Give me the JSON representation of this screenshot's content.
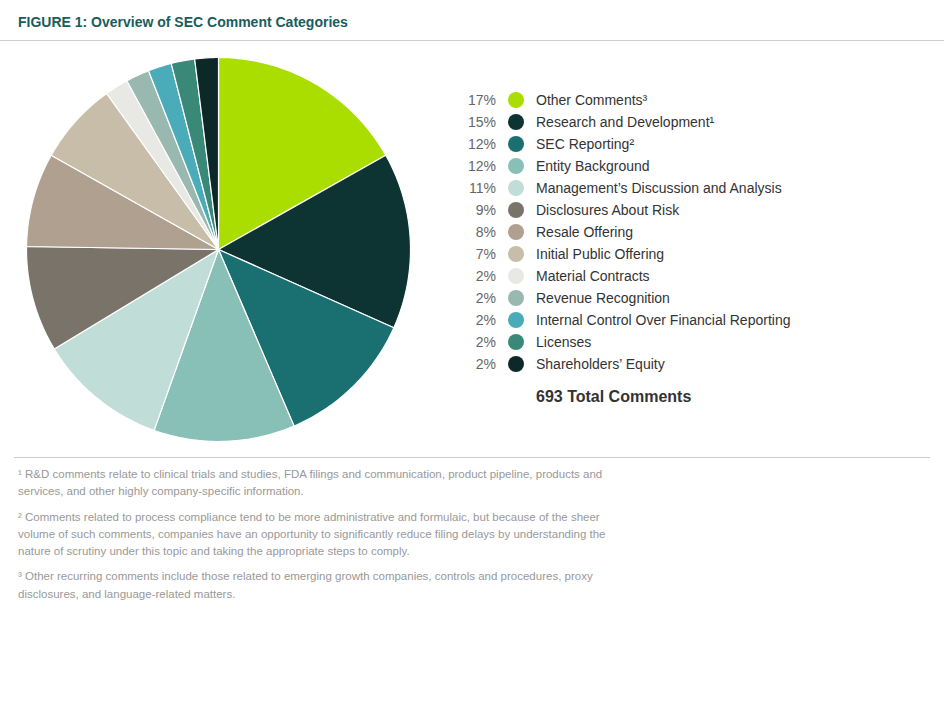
{
  "chart_data": {
    "type": "pie",
    "title": "FIGURE 1:  Overview of SEC Comment Categories",
    "categories": [
      "Other Comments³",
      "Research and Development¹",
      "SEC Reporting²",
      "Entity Background",
      "Management’s Discussion and Analysis",
      "Disclosures About Risk",
      "Resale Offering",
      "Initial Public Offering",
      "Material Contracts",
      "Revenue Recognition",
      "Internal Control Over Financial Reporting",
      "Licenses",
      "Shareholders’ Equity"
    ],
    "values": [
      17,
      15,
      12,
      12,
      11,
      9,
      8,
      7,
      2,
      2,
      2,
      2,
      2
    ],
    "value_labels": [
      "17%",
      "15%",
      "12%",
      "12%",
      "11%",
      "9%",
      "8%",
      "7%",
      "2%",
      "2%",
      "2%",
      "2%",
      "2%"
    ],
    "colors": [
      "#aadd00",
      "#0d3333",
      "#1a7070",
      "#88c0b8",
      "#c0ddd8",
      "#7a736a",
      "#b0a090",
      "#c8bda8",
      "#e8e8e4",
      "#98b8b0",
      "#4aacb8",
      "#3a8878",
      "#0d2828"
    ],
    "legend": "right",
    "annotations": [
      "693 Total Comments",
      "¹ R&D comments relate to clinical trials and studies, FDA filings and communication, product pipeline, products and\nservices, and other highly company-specific information.",
      "² Comments related to process compliance tend to be more administrative and formulaic, but because of the sheer\nvolume of such comments, companies have an opportunity to significantly reduce filing delays by understanding the\nnature of scrutiny under this topic and taking the appropriate steps to comply.",
      "³ Other recurring comments include those related to emerging growth companies, controls and procedures, proxy\ndisclosures, and language-related matters."
    ]
  }
}
